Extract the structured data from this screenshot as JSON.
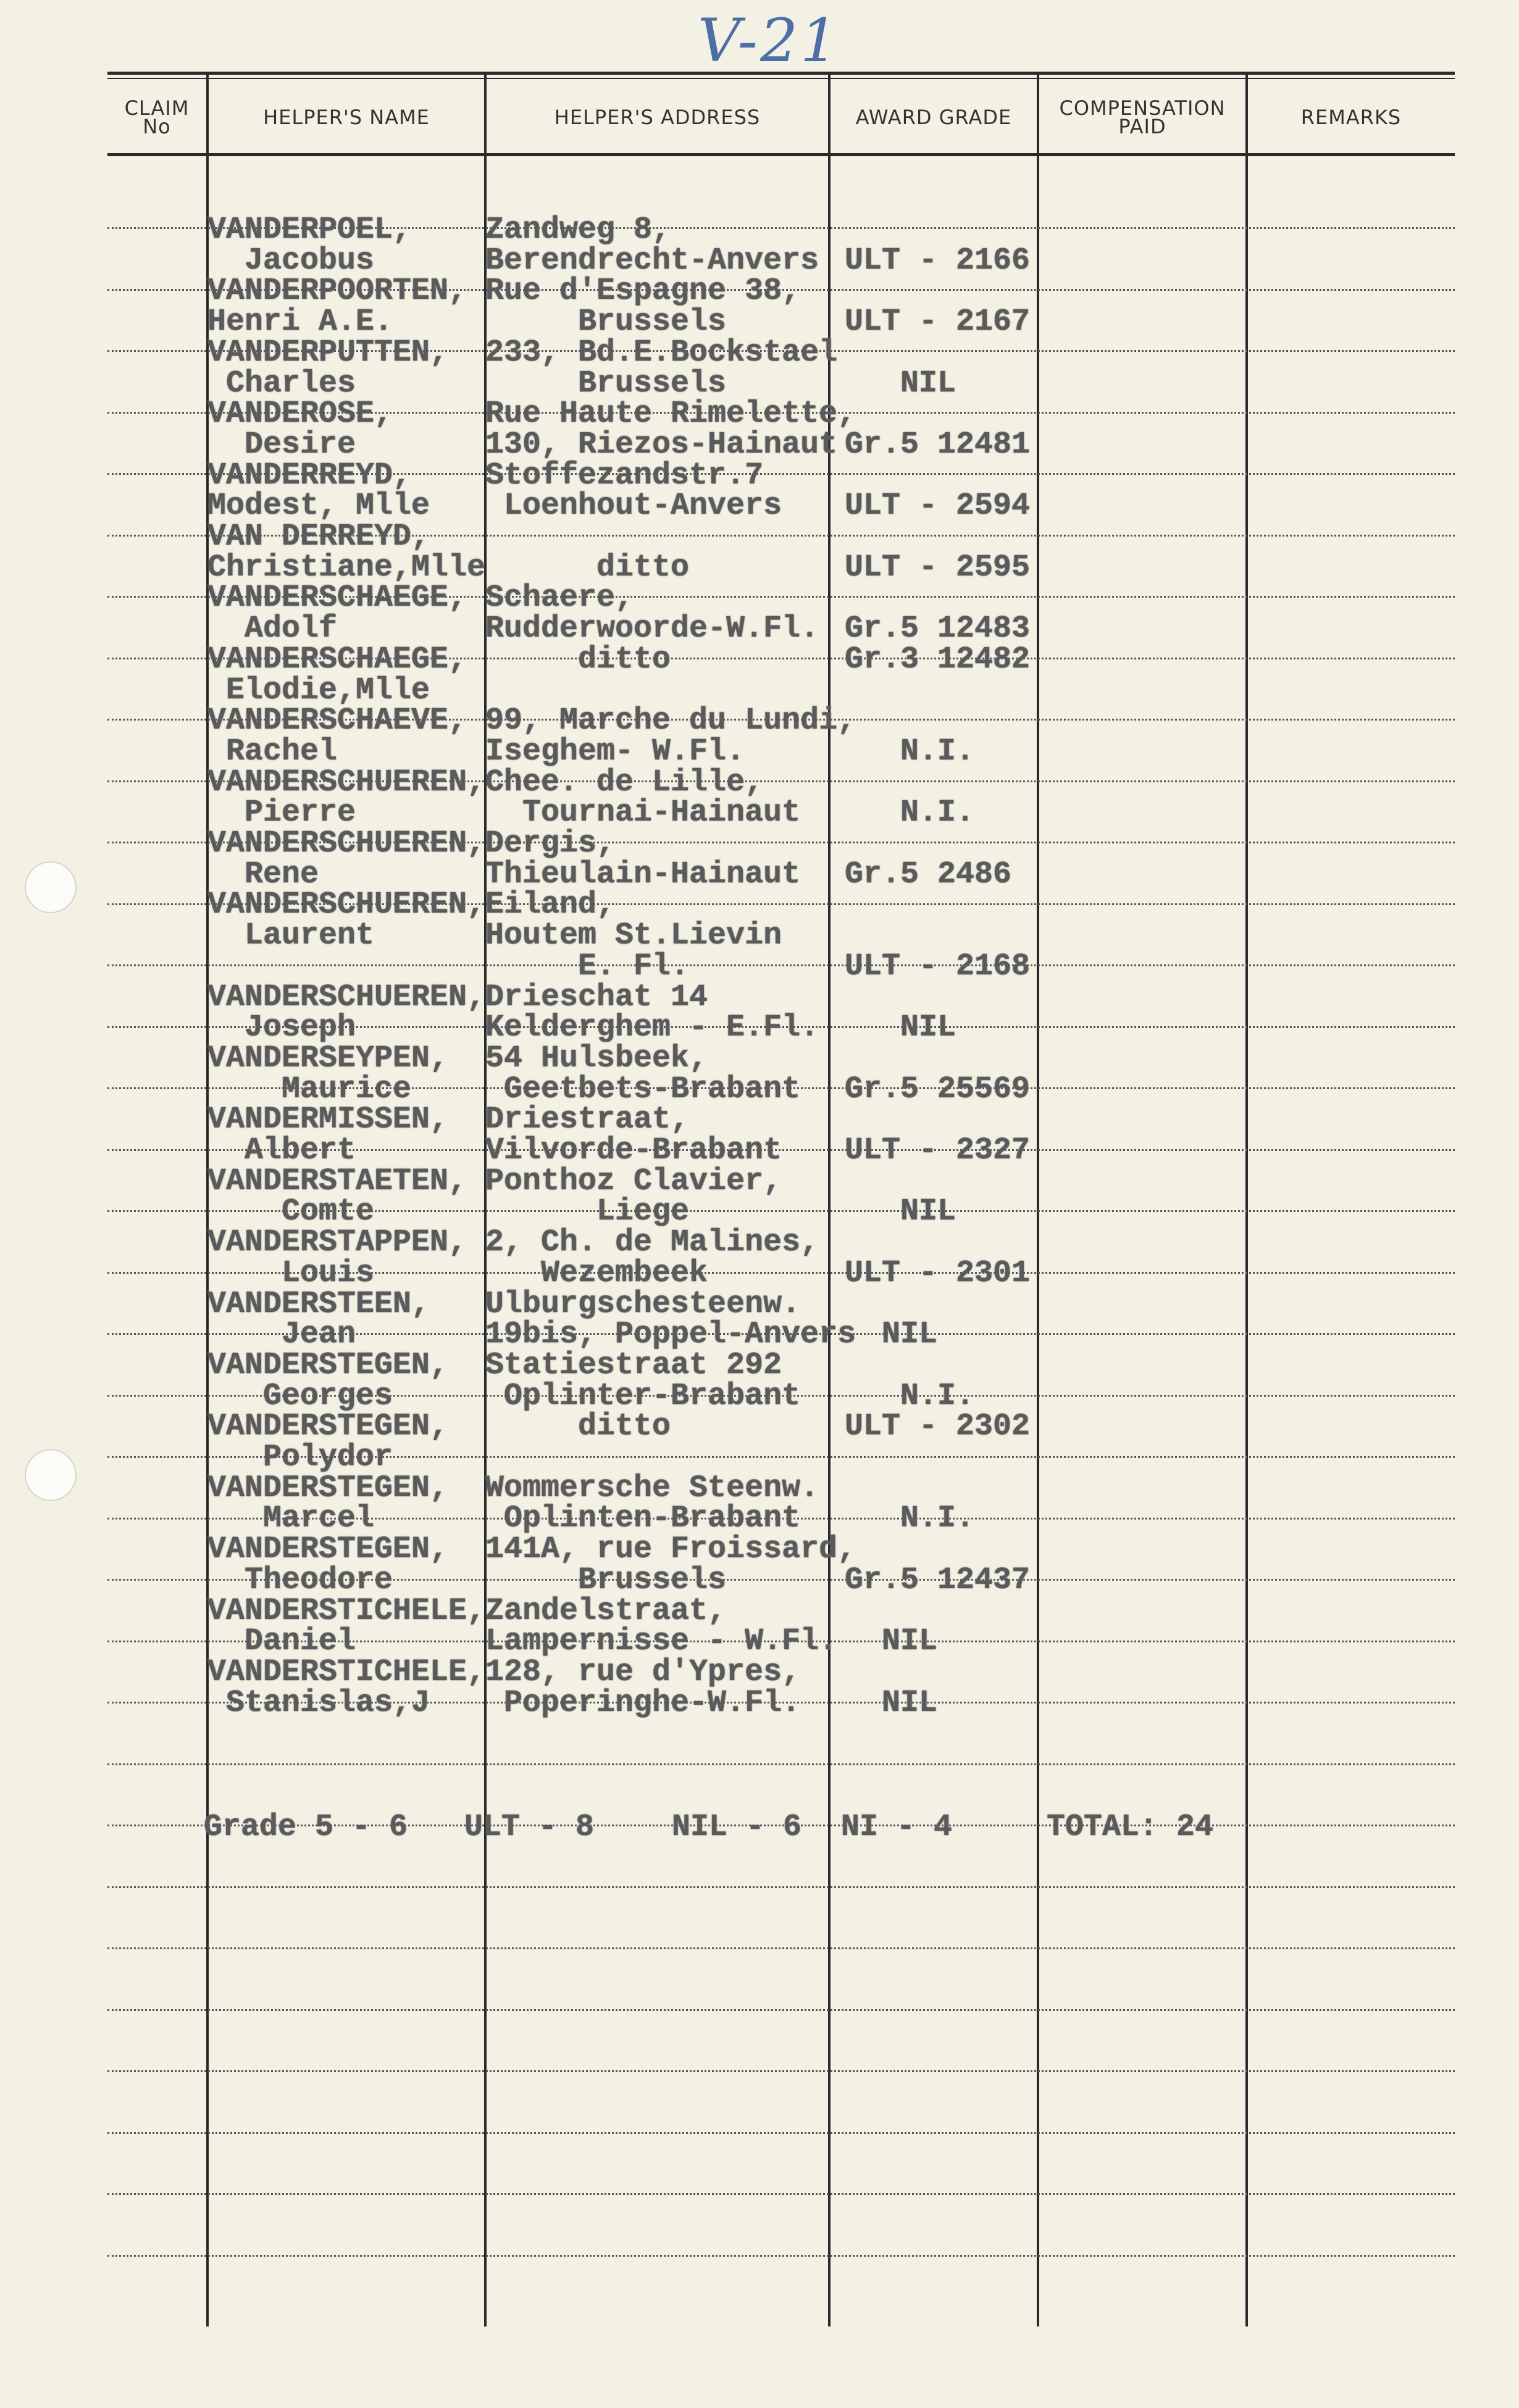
{
  "annotation": "V-21",
  "headers": {
    "claim_no": "CLAIM\nNo",
    "helper_name": "HELPER'S NAME",
    "helper_address": "HELPER'S ADDRESS",
    "award_grade": "AWARD GRADE",
    "compensation_paid": "COMPENSATION\nPAID",
    "remarks": "REMARKS"
  },
  "lines": [
    [
      "VANDERPOEL,",
      "Zandweg 8,",
      ""
    ],
    [
      "  Jacobus",
      "Berendrecht-Anvers",
      "ULT - 2166"
    ],
    [
      "VANDERPOORTEN,",
      "Rue d'Espagne 38,",
      ""
    ],
    [
      "Henri A.E.",
      "     Brussels",
      "ULT - 2167"
    ],
    [
      "VANDERPUTTEN,",
      "233, Bd.E.Bockstael",
      ""
    ],
    [
      " Charles",
      "     Brussels",
      "   NIL"
    ],
    [
      "VANDEROSE,",
      "Rue Haute Rimelette,",
      ""
    ],
    [
      "  Desire",
      "130, Riezos-Hainaut",
      "Gr.5 12481"
    ],
    [
      "VANDERREYD,",
      "Stoffezandstr.7",
      ""
    ],
    [
      "Modest, Mlle",
      " Loenhout-Anvers",
      "ULT - 2594"
    ],
    [
      "VAN DERREYD,",
      "",
      ""
    ],
    [
      "Christiane,Mlle",
      "      ditto",
      "ULT - 2595"
    ],
    [
      "VANDERSCHAEGE,",
      "Schaere,",
      ""
    ],
    [
      "  Adolf",
      "Rudderwoorde-W.Fl.",
      "Gr.5 12483"
    ],
    [
      "VANDERSCHAEGE,",
      "     ditto",
      "Gr.3 12482"
    ],
    [
      " Elodie,Mlle",
      "",
      ""
    ],
    [
      "VANDERSCHAEVE,",
      "99, Marche du Lundi,",
      ""
    ],
    [
      " Rachel",
      "Iseghem- W.Fl.",
      "   N.I."
    ],
    [
      "VANDERSCHUEREN,",
      "Chee. de Lille,",
      ""
    ],
    [
      "  Pierre",
      "  Tournai-Hainaut",
      "   N.I."
    ],
    [
      "VANDERSCHUEREN,",
      "Dergis,",
      ""
    ],
    [
      "  Rene",
      "Thieulain-Hainaut",
      "Gr.5 2486"
    ],
    [
      "VANDERSCHUEREN,",
      "Eiland,",
      ""
    ],
    [
      "  Laurent",
      "Houtem St.Lievin",
      ""
    ],
    [
      "",
      "     E. Fl.",
      "ULT - 2168"
    ],
    [
      "VANDERSCHUEREN,",
      "Drieschat 14",
      ""
    ],
    [
      "  Joseph",
      "Kelderghem - E.Fl.",
      "   NIL"
    ],
    [
      "VANDERSEYPEN,",
      "54 Hulsbeek,",
      ""
    ],
    [
      "    Maurice",
      " Geetbets-Brabant",
      "Gr.5 25569"
    ],
    [
      "VANDERMISSEN,",
      "Driestraat,",
      ""
    ],
    [
      "  Albert",
      "Vilvorde-Brabant",
      "ULT - 2327"
    ],
    [
      "VANDERSTAETEN,",
      "Ponthoz Clavier,",
      ""
    ],
    [
      "    Comte",
      "      Liege",
      "   NIL"
    ],
    [
      "VANDERSTAPPEN,",
      "2, Ch. de Malines,",
      ""
    ],
    [
      "    Louis",
      "   Wezembeek",
      "ULT - 2301"
    ],
    [
      "VANDERSTEEN,",
      "Ulburgschesteenw.",
      ""
    ],
    [
      "    Jean",
      "19bis, Poppel-Anvers",
      "  NIL"
    ],
    [
      "VANDERSTEGEN,",
      "Statiestraat 292",
      ""
    ],
    [
      "   Georges",
      " Oplinter-Brabant",
      "   N.I."
    ],
    [
      "VANDERSTEGEN,",
      "     ditto",
      "ULT - 2302"
    ],
    [
      "   Polydor",
      "",
      ""
    ],
    [
      "VANDERSTEGEN,",
      "Wommersche Steenw.",
      ""
    ],
    [
      "   Marcel",
      " Oplinten-Brabant",
      "   N.I."
    ],
    [
      "VANDERSTEGEN,",
      "141A, rue Froissard,",
      ""
    ],
    [
      "  Theodore",
      "     Brussels",
      "Gr.5 12437"
    ],
    [
      "VANDERSTICHELE,",
      "Zandelstraat,",
      ""
    ],
    [
      "  Daniel",
      "Lampernisse - W.Fl.",
      "  NIL"
    ],
    [
      "VANDERSTICHELE,",
      "128, rue d'Ypres,",
      ""
    ],
    [
      " Stanislas,J",
      " Poperinghe-W.Fl.",
      "  NIL"
    ]
  ],
  "summary": {
    "grade5": "Grade 5 - 6",
    "ult": "ULT - 8",
    "nil": "NIL - 6",
    "ni": "NI - 4",
    "total": "TOTAL: 24"
  }
}
